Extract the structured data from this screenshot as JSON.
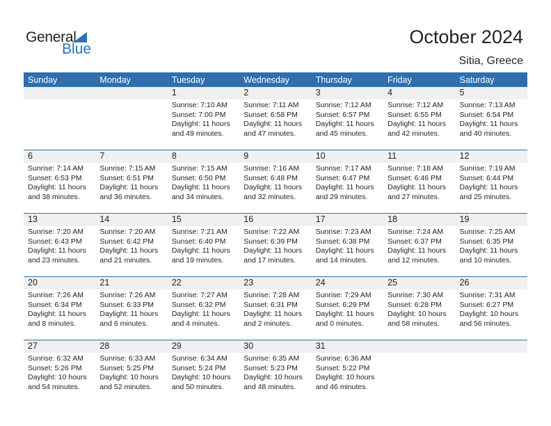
{
  "logo": {
    "general": "General",
    "blue": "Blue"
  },
  "title": "October 2024",
  "location": "Sitia, Greece",
  "days": [
    "Sunday",
    "Monday",
    "Tuesday",
    "Wednesday",
    "Thursday",
    "Friday",
    "Saturday"
  ],
  "weeks": [
    [
      null,
      null,
      {
        "d": "1",
        "sr": "Sunrise: 7:10 AM",
        "ss": "Sunset: 7:00 PM",
        "dl": "Daylight: 11 hours",
        "dm": "and 49 minutes."
      },
      {
        "d": "2",
        "sr": "Sunrise: 7:11 AM",
        "ss": "Sunset: 6:58 PM",
        "dl": "Daylight: 11 hours",
        "dm": "and 47 minutes."
      },
      {
        "d": "3",
        "sr": "Sunrise: 7:12 AM",
        "ss": "Sunset: 6:57 PM",
        "dl": "Daylight: 11 hours",
        "dm": "and 45 minutes."
      },
      {
        "d": "4",
        "sr": "Sunrise: 7:12 AM",
        "ss": "Sunset: 6:55 PM",
        "dl": "Daylight: 11 hours",
        "dm": "and 42 minutes."
      },
      {
        "d": "5",
        "sr": "Sunrise: 7:13 AM",
        "ss": "Sunset: 6:54 PM",
        "dl": "Daylight: 11 hours",
        "dm": "and 40 minutes."
      }
    ],
    [
      {
        "d": "6",
        "sr": "Sunrise: 7:14 AM",
        "ss": "Sunset: 6:53 PM",
        "dl": "Daylight: 11 hours",
        "dm": "and 38 minutes."
      },
      {
        "d": "7",
        "sr": "Sunrise: 7:15 AM",
        "ss": "Sunset: 6:51 PM",
        "dl": "Daylight: 11 hours",
        "dm": "and 36 minutes."
      },
      {
        "d": "8",
        "sr": "Sunrise: 7:15 AM",
        "ss": "Sunset: 6:50 PM",
        "dl": "Daylight: 11 hours",
        "dm": "and 34 minutes."
      },
      {
        "d": "9",
        "sr": "Sunrise: 7:16 AM",
        "ss": "Sunset: 6:48 PM",
        "dl": "Daylight: 11 hours",
        "dm": "and 32 minutes."
      },
      {
        "d": "10",
        "sr": "Sunrise: 7:17 AM",
        "ss": "Sunset: 6:47 PM",
        "dl": "Daylight: 11 hours",
        "dm": "and 29 minutes."
      },
      {
        "d": "11",
        "sr": "Sunrise: 7:18 AM",
        "ss": "Sunset: 6:46 PM",
        "dl": "Daylight: 11 hours",
        "dm": "and 27 minutes."
      },
      {
        "d": "12",
        "sr": "Sunrise: 7:19 AM",
        "ss": "Sunset: 6:44 PM",
        "dl": "Daylight: 11 hours",
        "dm": "and 25 minutes."
      }
    ],
    [
      {
        "d": "13",
        "sr": "Sunrise: 7:20 AM",
        "ss": "Sunset: 6:43 PM",
        "dl": "Daylight: 11 hours",
        "dm": "and 23 minutes."
      },
      {
        "d": "14",
        "sr": "Sunrise: 7:20 AM",
        "ss": "Sunset: 6:42 PM",
        "dl": "Daylight: 11 hours",
        "dm": "and 21 minutes."
      },
      {
        "d": "15",
        "sr": "Sunrise: 7:21 AM",
        "ss": "Sunset: 6:40 PM",
        "dl": "Daylight: 11 hours",
        "dm": "and 19 minutes."
      },
      {
        "d": "16",
        "sr": "Sunrise: 7:22 AM",
        "ss": "Sunset: 6:39 PM",
        "dl": "Daylight: 11 hours",
        "dm": "and 17 minutes."
      },
      {
        "d": "17",
        "sr": "Sunrise: 7:23 AM",
        "ss": "Sunset: 6:38 PM",
        "dl": "Daylight: 11 hours",
        "dm": "and 14 minutes."
      },
      {
        "d": "18",
        "sr": "Sunrise: 7:24 AM",
        "ss": "Sunset: 6:37 PM",
        "dl": "Daylight: 11 hours",
        "dm": "and 12 minutes."
      },
      {
        "d": "19",
        "sr": "Sunrise: 7:25 AM",
        "ss": "Sunset: 6:35 PM",
        "dl": "Daylight: 11 hours",
        "dm": "and 10 minutes."
      }
    ],
    [
      {
        "d": "20",
        "sr": "Sunrise: 7:26 AM",
        "ss": "Sunset: 6:34 PM",
        "dl": "Daylight: 11 hours",
        "dm": "and 8 minutes."
      },
      {
        "d": "21",
        "sr": "Sunrise: 7:26 AM",
        "ss": "Sunset: 6:33 PM",
        "dl": "Daylight: 11 hours",
        "dm": "and 6 minutes."
      },
      {
        "d": "22",
        "sr": "Sunrise: 7:27 AM",
        "ss": "Sunset: 6:32 PM",
        "dl": "Daylight: 11 hours",
        "dm": "and 4 minutes."
      },
      {
        "d": "23",
        "sr": "Sunrise: 7:28 AM",
        "ss": "Sunset: 6:31 PM",
        "dl": "Daylight: 11 hours",
        "dm": "and 2 minutes."
      },
      {
        "d": "24",
        "sr": "Sunrise: 7:29 AM",
        "ss": "Sunset: 6:29 PM",
        "dl": "Daylight: 11 hours",
        "dm": "and 0 minutes."
      },
      {
        "d": "25",
        "sr": "Sunrise: 7:30 AM",
        "ss": "Sunset: 6:28 PM",
        "dl": "Daylight: 10 hours",
        "dm": "and 58 minutes."
      },
      {
        "d": "26",
        "sr": "Sunrise: 7:31 AM",
        "ss": "Sunset: 6:27 PM",
        "dl": "Daylight: 10 hours",
        "dm": "and 56 minutes."
      }
    ],
    [
      {
        "d": "27",
        "sr": "Sunrise: 6:32 AM",
        "ss": "Sunset: 5:26 PM",
        "dl": "Daylight: 10 hours",
        "dm": "and 54 minutes."
      },
      {
        "d": "28",
        "sr": "Sunrise: 6:33 AM",
        "ss": "Sunset: 5:25 PM",
        "dl": "Daylight: 10 hours",
        "dm": "and 52 minutes."
      },
      {
        "d": "29",
        "sr": "Sunrise: 6:34 AM",
        "ss": "Sunset: 5:24 PM",
        "dl": "Daylight: 10 hours",
        "dm": "and 50 minutes."
      },
      {
        "d": "30",
        "sr": "Sunrise: 6:35 AM",
        "ss": "Sunset: 5:23 PM",
        "dl": "Daylight: 10 hours",
        "dm": "and 48 minutes."
      },
      {
        "d": "31",
        "sr": "Sunrise: 6:36 AM",
        "ss": "Sunset: 5:22 PM",
        "dl": "Daylight: 10 hours",
        "dm": "and 46 minutes."
      },
      null,
      null
    ]
  ],
  "colors": {
    "header": "#2e6fb0",
    "date_band": "#f0f0f0",
    "brand_blue": "#2a72b5"
  }
}
